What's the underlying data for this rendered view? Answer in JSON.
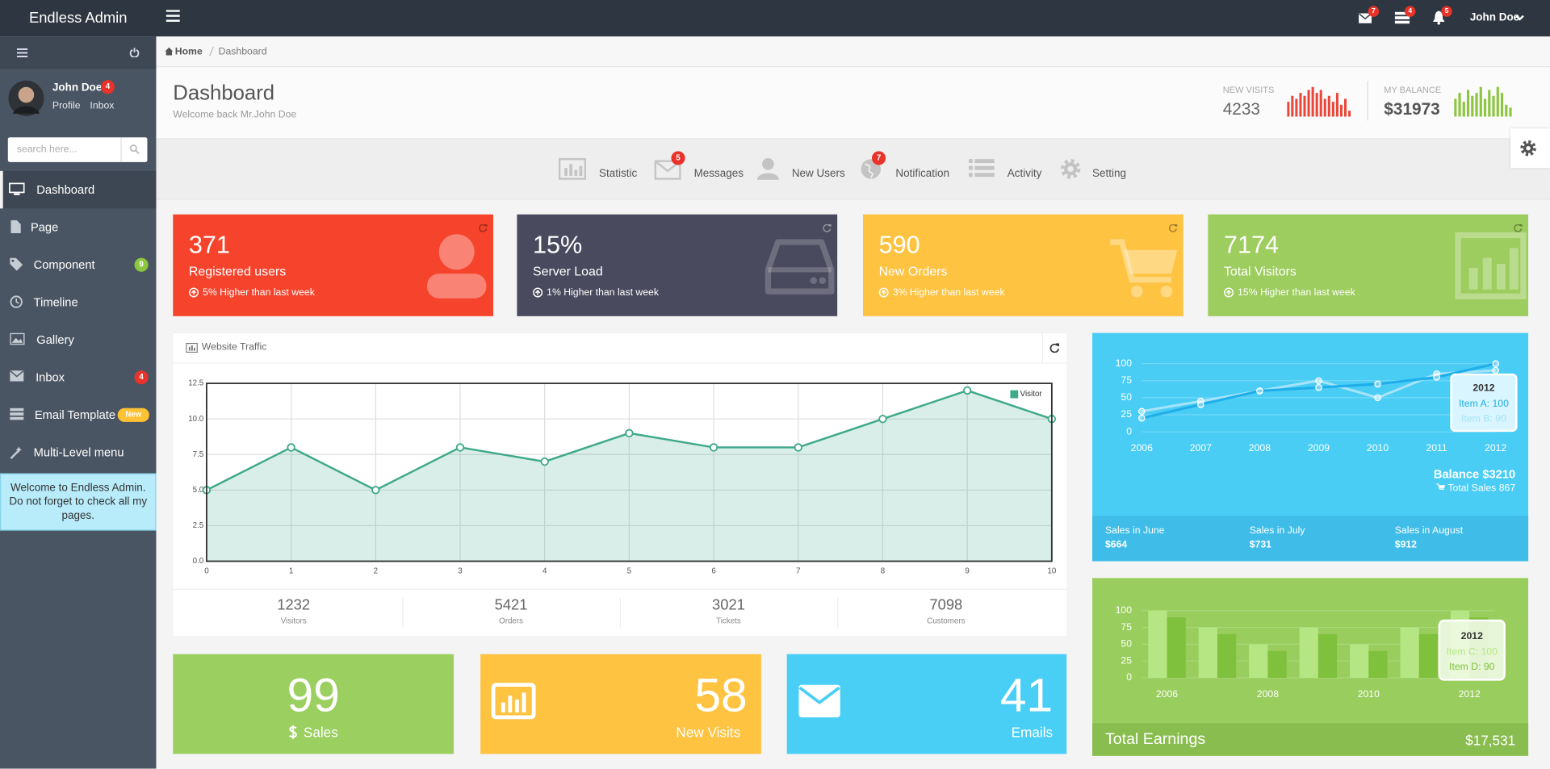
{
  "topbar": {
    "brand": "Endless Admin",
    "notifications": [
      7,
      4,
      5
    ],
    "user": "John Doe"
  },
  "sidebar": {
    "user": "John Doe",
    "user_badge": 4,
    "links": [
      "Profile",
      "Inbox"
    ],
    "search_placeholder": "search here...",
    "menu": [
      {
        "label": "Dashboard"
      },
      {
        "label": "Page"
      },
      {
        "label": "Component",
        "badge": 9
      },
      {
        "label": "Timeline"
      },
      {
        "label": "Gallery"
      },
      {
        "label": "Inbox",
        "badge": 4
      },
      {
        "label": "Email Template",
        "badge": "New"
      },
      {
        "label": "Multi-Level menu"
      }
    ],
    "notice": "Welcome to Endless Admin. Do not forget to check all my pages."
  },
  "breadcrumb": [
    "Home",
    "Dashboard"
  ],
  "header": {
    "title": "Dashboard",
    "subtitle": "Welcome back Mr.John Doe",
    "stats": [
      {
        "label": "NEW VISITS",
        "value": 4233
      },
      {
        "label": "MY BALANCE",
        "value": "$31973"
      }
    ]
  },
  "shortcuts": [
    {
      "label": "Statistic"
    },
    {
      "label": "Messages",
      "badge": 5
    },
    {
      "label": "New Users"
    },
    {
      "label": "Notification",
      "badge": 7
    },
    {
      "label": "Activity"
    },
    {
      "label": "Setting"
    }
  ],
  "tiles": [
    {
      "value": 371,
      "label": "Registered users",
      "note": "5% Higher than last week"
    },
    {
      "value": "15%",
      "label": "Server Load",
      "note": "1% Higher than last week"
    },
    {
      "value": 590,
      "label": "New Orders",
      "note": "3% Higher than last week"
    },
    {
      "value": 7174,
      "label": "Total Visitors",
      "note": "15% Higher than last week"
    }
  ],
  "traffic_summary": [
    {
      "value": 1232,
      "label": "Visitors"
    },
    {
      "value": 5421,
      "label": "Orders"
    },
    {
      "value": 3021,
      "label": "Tickets"
    },
    {
      "value": 7098,
      "label": "Customers"
    }
  ],
  "balance": {
    "title": "Balance $3210",
    "total": "Total Sales 867",
    "months": [
      {
        "label": "Sales in June",
        "value": "$664"
      },
      {
        "label": "Sales in July",
        "value": "$731"
      },
      {
        "label": "Sales in August",
        "value": "$912"
      }
    ]
  },
  "earnings": {
    "label": "Total Earnings",
    "value": "$17,531"
  },
  "mini_tiles": [
    {
      "value": 99,
      "label": "Sales"
    },
    {
      "value": 58,
      "label": "New Visits"
    },
    {
      "value": 41,
      "label": "Emails"
    }
  ],
  "chart_data": [
    {
      "type": "line",
      "title": "Website Traffic",
      "x": [
        0,
        1,
        2,
        3,
        4,
        5,
        6,
        7,
        8,
        9,
        10
      ],
      "series": [
        {
          "name": "Visitor",
          "color": "#3fa98a",
          "values": [
            5,
            8,
            5,
            8,
            7,
            9,
            8,
            8,
            10,
            12,
            10
          ]
        }
      ],
      "xlim": [
        0,
        10
      ],
      "ylim": [
        0,
        12.5
      ],
      "xticks": [
        0,
        1,
        2,
        3,
        4,
        5,
        6,
        7,
        8,
        9,
        10
      ],
      "yticks": [
        {
          "value": 0,
          "label": "0.0"
        },
        {
          "value": 2.5,
          "label": "2.5"
        },
        {
          "value": 5,
          "label": "5.0"
        },
        {
          "value": 7.5,
          "label": "7.5"
        },
        {
          "value": 10,
          "label": "10.0"
        },
        {
          "value": 12.5,
          "label": "12.5"
        }
      ],
      "grid": true,
      "legend": "top-right"
    },
    {
      "type": "line",
      "categories": [
        "2006",
        "2007",
        "2008",
        "2009",
        "2010",
        "2011",
        "2012"
      ],
      "series": [
        {
          "name": "Item A",
          "color": "#1faee9",
          "values": [
            20,
            40,
            60,
            65,
            70,
            80,
            100
          ]
        },
        {
          "name": "Item B",
          "color": "#a5e4f8",
          "values": [
            30,
            45,
            60,
            75,
            50,
            85,
            90
          ]
        }
      ],
      "ylim": [
        0,
        100
      ],
      "yticks": [
        0,
        25,
        50,
        75,
        100
      ],
      "grid": true,
      "tooltip": [
        "Item A: 100",
        "Item B: 90"
      ]
    },
    {
      "type": "bar",
      "categories": [
        "2006",
        null,
        "2008",
        null,
        "2010",
        null,
        "2012"
      ],
      "series": [
        {
          "name": "Item C",
          "color": "#b6e683",
          "values": [
            100,
            75,
            50,
            75,
            50,
            75,
            100
          ]
        },
        {
          "name": "Item D",
          "color": "#7fc13c",
          "values": [
            90,
            65,
            40,
            65,
            40,
            65,
            90
          ]
        }
      ],
      "ylim": [
        0,
        100
      ],
      "yticks": [
        0,
        25,
        50,
        75,
        100
      ],
      "grid": true,
      "tooltip": [
        "Item C: 100",
        "Item D: 90"
      ]
    },
    {
      "type": "bar",
      "color": "#e8473a",
      "values": [
        5,
        7,
        6,
        8,
        7,
        9,
        10,
        8,
        9,
        6,
        7,
        5,
        8,
        4,
        6,
        2
      ]
    },
    {
      "type": "bar",
      "color": "#8cc63f",
      "values": [
        6,
        8,
        5,
        9,
        7,
        8,
        10,
        6,
        9,
        7,
        10,
        8,
        4,
        3
      ]
    }
  ]
}
